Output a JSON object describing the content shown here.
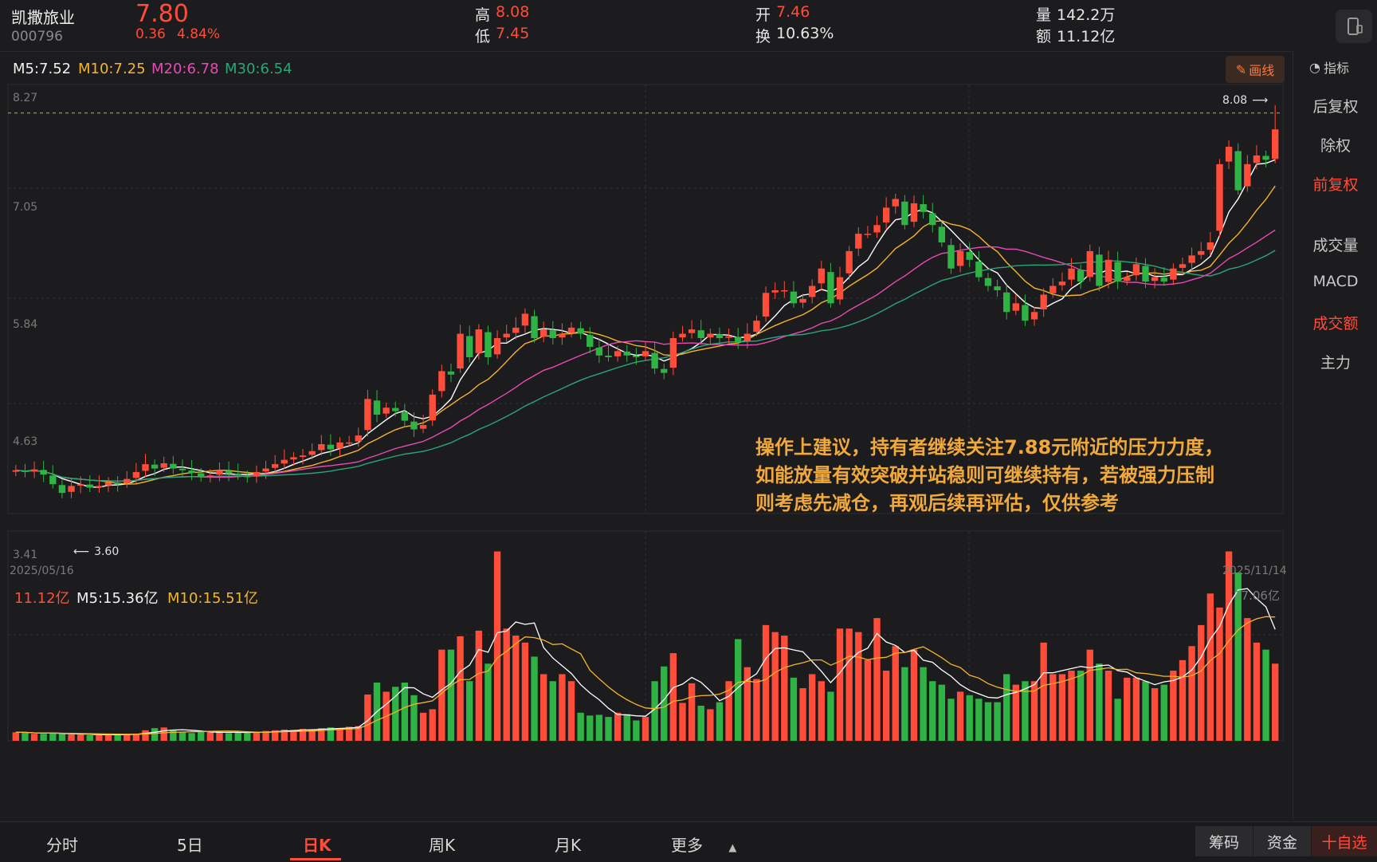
{
  "stock": {
    "name": "凯撒旅业",
    "code": "000796",
    "price": "7.80",
    "change": "0.36",
    "change_pct": "4.84%",
    "high_label": "高",
    "high": "8.08",
    "low_label": "低",
    "low": "7.45",
    "open_label": "开",
    "open": "7.46",
    "turnover_label": "换",
    "turnover": "10.63%",
    "volume_label": "量",
    "volume": "142.2万",
    "amount_label": "额",
    "amount": "11.12亿"
  },
  "ma_legend": {
    "m5": "M5:7.52",
    "m10": "M10:7.25",
    "m20": "M20:6.78",
    "m30": "M30:6.54"
  },
  "draw_button": "画线",
  "indicator_label": "指标",
  "right_panel": [
    {
      "label": "后复权",
      "active": false
    },
    {
      "label": "除权",
      "active": false
    },
    {
      "label": "前复权",
      "active": true
    },
    {
      "label": "成交量",
      "active": false
    },
    {
      "label": "MACD",
      "active": false
    },
    {
      "label": "成交额",
      "active": true
    },
    {
      "label": "主力",
      "active": false
    }
  ],
  "price_axis": {
    "ticks": [
      "8.27",
      "7.05",
      "5.84",
      "4.63",
      "3.41"
    ],
    "max_marker": "8.08",
    "min_marker": "3.60",
    "start_date": "2025/05/16",
    "end_date": "2025/11/14"
  },
  "volume_legend": {
    "amount": "11.12亿",
    "m5": "M5:15.36亿",
    "m10": "M10:15.51亿",
    "max": "27.06亿"
  },
  "annotation": [
    "操作上建议，持有者继续关注7.88元附近的压力力度，",
    "如能放量有效突破并站稳则可继续持有，若被强力压制",
    "则考虑先减仓，再观后续再评估，仅供参考"
  ],
  "tabs": [
    {
      "label": "分时",
      "active": false
    },
    {
      "label": "5日",
      "active": false
    },
    {
      "label": "日K",
      "active": true
    },
    {
      "label": "周K",
      "active": false
    },
    {
      "label": "月K",
      "active": false
    },
    {
      "label": "更多",
      "active": false
    }
  ],
  "bottom_buttons": {
    "chips": "筹码",
    "funds": "资金",
    "add_watch": "十自选"
  },
  "colors": {
    "up": "#ff4d3a",
    "down": "#2fb344",
    "ma5": "#ffffff",
    "ma10": "#f5b52a",
    "ma20": "#e84ab5",
    "ma30": "#2aa57a"
  },
  "chart_data": {
    "type": "candlestick",
    "ylim": [
      3.41,
      8.27
    ],
    "closes": [
      3.88,
      3.86,
      3.89,
      3.83,
      3.72,
      3.62,
      3.7,
      3.72,
      3.68,
      3.7,
      3.74,
      3.72,
      3.78,
      3.86,
      3.95,
      3.9,
      3.96,
      3.9,
      3.88,
      3.85,
      3.8,
      3.82,
      3.88,
      3.84,
      3.82,
      3.8,
      3.86,
      3.9,
      3.95,
      4.0,
      4.03,
      4.05,
      4.1,
      4.18,
      4.12,
      4.2,
      4.2,
      4.28,
      4.7,
      4.52,
      4.6,
      4.56,
      4.45,
      4.35,
      4.4,
      4.75,
      5.02,
      4.98,
      5.45,
      5.18,
      5.5,
      5.18,
      5.4,
      5.45,
      5.52,
      5.68,
      5.4,
      5.5,
      5.4,
      5.45,
      5.52,
      5.45,
      5.3,
      5.2,
      5.18,
      5.25,
      5.2,
      5.18,
      5.25,
      5.05,
      5.0,
      5.4,
      5.45,
      5.5,
      5.4,
      5.45,
      5.4,
      5.42,
      5.35,
      5.45,
      5.6,
      5.92,
      5.95,
      5.95,
      5.8,
      5.85,
      6.0,
      6.2,
      5.8,
      6.1,
      6.4,
      6.6,
      6.6,
      6.7,
      6.9,
      7.0,
      6.7,
      6.95,
      6.85,
      6.7,
      6.5,
      6.2,
      6.4,
      6.3,
      6.1,
      6.0,
      5.95,
      5.7,
      5.8,
      5.6,
      5.7,
      5.9,
      6.0,
      6.05,
      6.2,
      6.05,
      6.4,
      6.0,
      6.3,
      6.05,
      6.1,
      6.25,
      6.05,
      6.1,
      6.05,
      6.2,
      6.25,
      6.35,
      6.4,
      6.5,
      7.4,
      7.6,
      7.1,
      7.4,
      7.5,
      7.45,
      7.8
    ],
    "volumes": [
      1.2,
      1.2,
      1.0,
      1.0,
      1.1,
      1.0,
      0.9,
      0.9,
      0.8,
      0.8,
      1.0,
      0.9,
      0.9,
      1.0,
      1.5,
      1.8,
      1.9,
      1.5,
      1.2,
      1.1,
      1.3,
      1.2,
      1.3,
      1.1,
      1.2,
      1.1,
      1.3,
      1.4,
      1.5,
      1.6,
      1.5,
      1.7,
      1.6,
      1.8,
      1.9,
      1.8,
      2.0,
      2.1,
      6.6,
      8.3,
      7.0,
      7.7,
      8.3,
      6.5,
      4.0,
      4.5,
      13.0,
      13.0,
      14.9,
      8.5,
      15.7,
      11.0,
      27.0,
      16.0,
      15.0,
      14.0,
      12.0,
      9.5,
      8.5,
      9.5,
      8.5,
      4.0,
      3.6,
      3.7,
      3.4,
      4.0,
      3.8,
      2.9,
      3.4,
      8.5,
      10.6,
      12.5,
      5.4,
      8.2,
      5.0,
      4.5,
      5.5,
      8.5,
      14.5,
      10.5,
      8.8,
      16.5,
      15.5,
      15.0,
      9.0,
      7.5,
      9.5,
      8.5,
      7.0,
      16.0,
      16.0,
      15.5,
      11.5,
      17.5,
      10.0,
      13.5,
      10.5,
      13.0,
      10.5,
      8.5,
      8.0,
      6.0,
      7.0,
      6.5,
      6.0,
      5.5,
      5.5,
      9.5,
      8.0,
      8.5,
      8.5,
      14.0,
      9.5,
      9.5,
      10.0,
      10.0,
      13.0,
      11.0,
      10.0,
      6.0,
      9.0,
      9.0,
      8.5,
      7.5,
      8.0,
      10.0,
      11.5,
      13.5,
      16.5,
      21.0,
      19.0,
      27.0,
      24.0,
      17.5,
      14.0,
      13.0,
      11.0
    ]
  }
}
